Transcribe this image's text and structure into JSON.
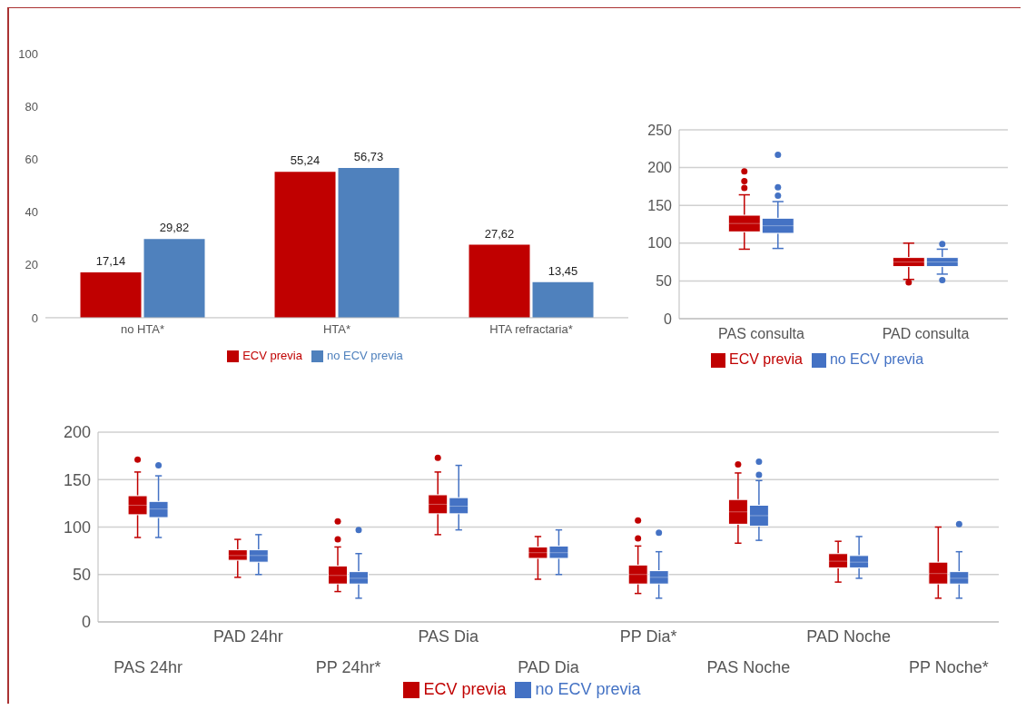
{
  "chart_data": [
    {
      "type": "bar",
      "categories": [
        "no HTA*",
        "HTA*",
        "HTA refractaria*"
      ],
      "series": [
        {
          "name": "ECV previa",
          "color": "#c00000",
          "values": [
            17.14,
            55.24,
            27.62
          ],
          "value_labels": [
            "17,14",
            "55,24",
            "27,62"
          ]
        },
        {
          "name": "no ECV previa",
          "color": "#4f81bd",
          "values": [
            29.82,
            56.73,
            13.45
          ],
          "value_labels": [
            "29,82",
            "56,73",
            "13,45"
          ]
        }
      ],
      "ylim": [
        0,
        100
      ],
      "yticks": [
        0,
        20,
        40,
        60,
        80,
        100
      ],
      "legend": "bottom"
    },
    {
      "type": "box",
      "categories": [
        "PAS consulta",
        "PAD consulta"
      ],
      "series": [
        {
          "name": "ECV previa",
          "color": "#c00000",
          "boxes": [
            {
              "low": 92,
              "q1": 115,
              "median": 126,
              "q3": 137,
              "high": 164,
              "outliers": [
                195,
                182,
                173
              ]
            },
            {
              "low": 52,
              "q1": 69,
              "median": 75,
              "q3": 81,
              "high": 100,
              "outliers": [
                48
              ]
            }
          ]
        },
        {
          "name": "no ECV previa",
          "color": "#4472c4",
          "boxes": [
            {
              "low": 93,
              "q1": 113,
              "median": 123,
              "q3": 133,
              "high": 155,
              "outliers": [
                217,
                174,
                163
              ]
            },
            {
              "low": 59,
              "q1": 69,
              "median": 75,
              "q3": 81,
              "high": 92,
              "outliers": [
                99,
                51
              ]
            }
          ]
        }
      ],
      "ylim": [
        0,
        250
      ],
      "yticks": [
        0,
        50,
        100,
        150,
        200,
        250
      ],
      "grid": "y",
      "legend": "bottom"
    },
    {
      "type": "box",
      "categories": [
        "PAS 24hr",
        "PAD 24hr",
        "PP 24hr*",
        "PAS Dia",
        "PAD Dia",
        "PP Dia*",
        "PAS Noche",
        "PAD Noche",
        "PP Noche*"
      ],
      "series": [
        {
          "name": "ECV previa",
          "color": "#c00000",
          "boxes": [
            {
              "low": 89,
              "q1": 113,
              "median": 123,
              "q3": 133,
              "high": 158,
              "outliers": [
                171
              ]
            },
            {
              "low": 47,
              "q1": 65,
              "median": 70,
              "q3": 76,
              "high": 87
            },
            {
              "low": 32,
              "q1": 40,
              "median": 49,
              "q3": 59,
              "high": 79,
              "outliers": [
                106,
                87
              ]
            },
            {
              "low": 92,
              "q1": 114,
              "median": 124,
              "q3": 134,
              "high": 158,
              "outliers": [
                173
              ]
            },
            {
              "low": 45,
              "q1": 67,
              "median": 73,
              "q3": 79,
              "high": 90
            },
            {
              "low": 30,
              "q1": 40,
              "median": 50,
              "q3": 60,
              "high": 80,
              "outliers": [
                107,
                88
              ]
            },
            {
              "low": 83,
              "q1": 103,
              "median": 116,
              "q3": 129,
              "high": 157,
              "outliers": [
                166
              ]
            },
            {
              "low": 42,
              "q1": 57,
              "median": 64,
              "q3": 72,
              "high": 85
            },
            {
              "low": 25,
              "q1": 40,
              "median": 51,
              "q3": 63,
              "high": 100
            }
          ]
        },
        {
          "name": "no ECV previa",
          "color": "#4472c4",
          "boxes": [
            {
              "low": 89,
              "q1": 110,
              "median": 119,
              "q3": 127,
              "high": 154,
              "outliers": [
                165
              ]
            },
            {
              "low": 50,
              "q1": 63,
              "median": 70,
              "q3": 76,
              "high": 92
            },
            {
              "low": 25,
              "q1": 40,
              "median": 46,
              "q3": 53,
              "high": 72,
              "outliers": [
                97
              ]
            },
            {
              "low": 97,
              "q1": 114,
              "median": 122,
              "q3": 131,
              "high": 165
            },
            {
              "low": 50,
              "q1": 67,
              "median": 73,
              "q3": 80,
              "high": 97
            },
            {
              "low": 25,
              "q1": 40,
              "median": 47,
              "q3": 54,
              "high": 74,
              "outliers": [
                94
              ]
            },
            {
              "low": 86,
              "q1": 101,
              "median": 112,
              "q3": 123,
              "high": 149,
              "outliers": [
                169,
                155
              ]
            },
            {
              "low": 46,
              "q1": 57,
              "median": 63,
              "q3": 70,
              "high": 90
            },
            {
              "low": 25,
              "q1": 40,
              "median": 46,
              "q3": 53,
              "high": 74,
              "outliers": [
                103
              ]
            }
          ]
        }
      ],
      "ylim": [
        0,
        200
      ],
      "yticks": [
        0,
        50,
        100,
        150,
        200
      ],
      "grid": "y",
      "legend": "bottom"
    }
  ]
}
